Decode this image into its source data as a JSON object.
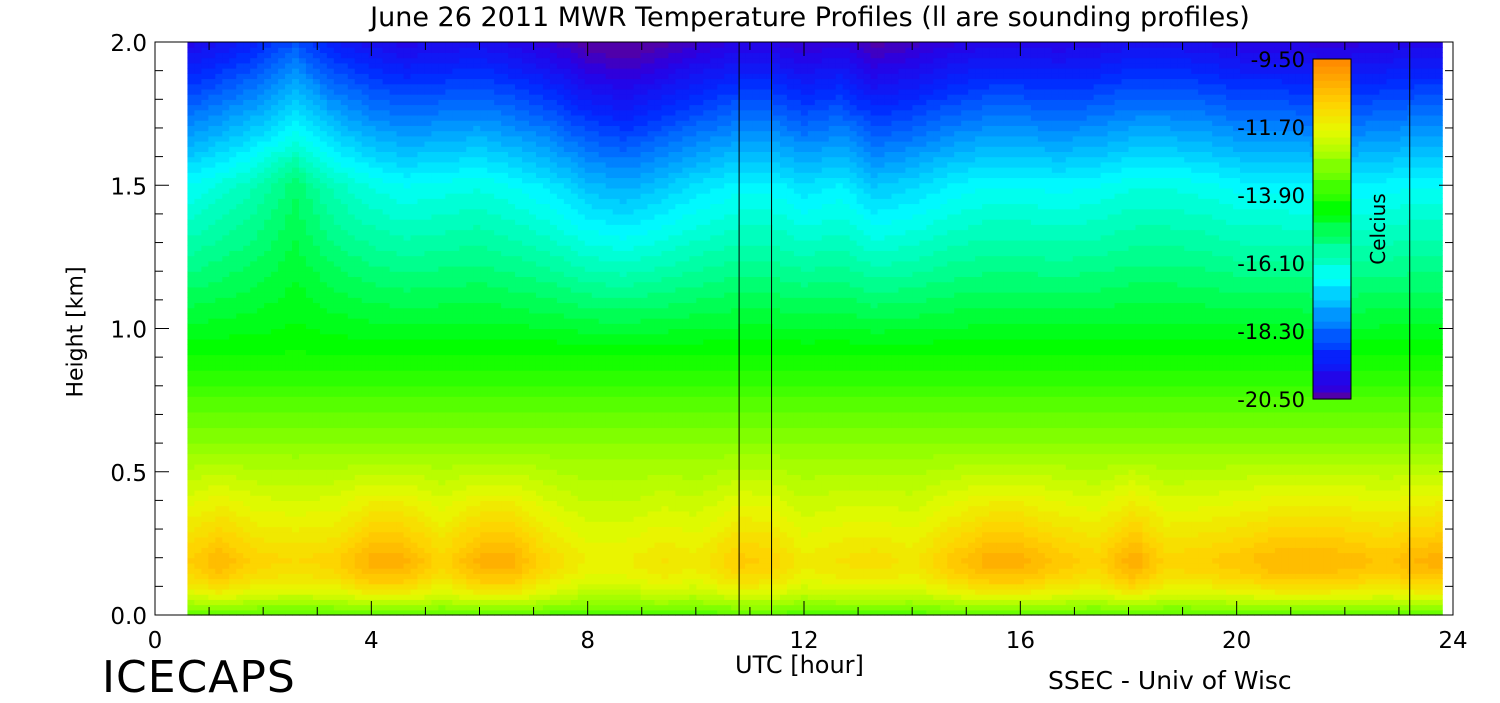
{
  "chart_data": {
    "type": "heatmap",
    "title": "June 26 2011 MWR Temperature Profiles (ll are sounding profiles)",
    "xlabel": "UTC [hour]",
    "ylabel": "Height [km]",
    "xlim": [
      0,
      24
    ],
    "ylim": [
      0,
      2
    ],
    "x_ticks": [
      "0",
      "4",
      "8",
      "12",
      "16",
      "20",
      "24"
    ],
    "y_ticks": [
      "0.0",
      "0.5",
      "1.0",
      "1.5",
      "2.0"
    ],
    "colorbar": {
      "label": "Celcius",
      "range": [
        -20.5,
        -9.5
      ],
      "ticks": [
        "-9.50",
        "-11.70",
        "-13.90",
        "-16.10",
        "-18.30",
        "-20.50"
      ],
      "placement": "top-right inside plot"
    },
    "data_extent_hours": [
      0.6,
      23.8
    ],
    "sounding_times_hours": [
      10.8,
      11.4,
      23.2
    ],
    "profile_times_hours": [
      0.6,
      1.2,
      1.9,
      2.6,
      3.3,
      4.0,
      4.6,
      5.3,
      6.0,
      6.6,
      7.3,
      8.0,
      8.7,
      9.4,
      10.0,
      10.8,
      11.4,
      12.0,
      12.7,
      13.3,
      14.0,
      14.7,
      15.4,
      16.0,
      16.7,
      17.4,
      18.1,
      18.7,
      19.4,
      20.1,
      20.8,
      21.5,
      22.1,
      22.8,
      23.3,
      23.8
    ],
    "surface_temperature_c": -13.5,
    "near_surface_warm_layer_temperature_c": [
      -10.8,
      -10.3,
      -10.9,
      -11.0,
      -10.9,
      -10.2,
      -10.2,
      -10.9,
      -10.2,
      -10.2,
      -11.0,
      -11.5,
      -11.5,
      -11.2,
      -11.4,
      -10.7,
      -10.8,
      -11.4,
      -11.2,
      -11.1,
      -11.3,
      -10.7,
      -10.2,
      -10.2,
      -10.6,
      -10.9,
      -10.1,
      -10.9,
      -10.8,
      -10.6,
      -10.3,
      -10.3,
      -10.4,
      -10.6,
      -10.3,
      -10.2
    ],
    "upper_temperature_anomaly_c": [
      0.0,
      0.3,
      0.7,
      1.3,
      0.6,
      0.2,
      0.0,
      0.1,
      0.2,
      0.0,
      -0.3,
      -0.8,
      -1.0,
      -0.7,
      -0.4,
      -0.1,
      -0.1,
      -0.4,
      -0.2,
      -0.7,
      -0.5,
      -0.2,
      0.0,
      0.0,
      -0.1,
      0.0,
      0.2,
      0.2,
      0.1,
      -0.1,
      -0.1,
      -0.2,
      -0.2,
      -0.1,
      0.0,
      0.0
    ]
  },
  "footer": {
    "left": "ICECAPS",
    "right": "SSEC - Univ of Wisc"
  }
}
